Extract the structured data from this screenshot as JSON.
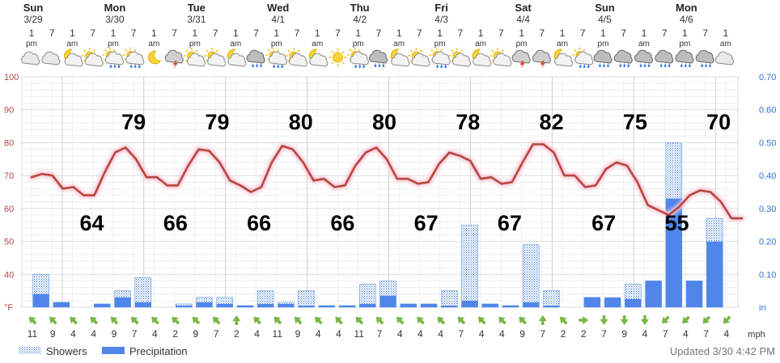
{
  "chart_data": {
    "type": "line",
    "days": [
      {
        "name": "Sun",
        "date": "3/29"
      },
      {
        "name": "Mon",
        "date": "3/30"
      },
      {
        "name": "Tue",
        "date": "3/31"
      },
      {
        "name": "Wed",
        "date": "4/1"
      },
      {
        "name": "Thu",
        "date": "4/2"
      },
      {
        "name": "Fri",
        "date": "4/3"
      },
      {
        "name": "Sat",
        "date": "4/4"
      },
      {
        "name": "Sun",
        "date": "4/5"
      },
      {
        "name": "Mon",
        "date": "4/6"
      }
    ],
    "hours": [
      {
        "h": "1",
        "p": "pm"
      },
      {
        "h": "7",
        "p": ""
      },
      {
        "h": "1",
        "p": "am"
      },
      {
        "h": "7",
        "p": ""
      },
      {
        "h": "1",
        "p": "pm"
      },
      {
        "h": "7",
        "p": ""
      },
      {
        "h": "1",
        "p": "am"
      },
      {
        "h": "7",
        "p": ""
      },
      {
        "h": "1",
        "p": "pm"
      },
      {
        "h": "7",
        "p": ""
      },
      {
        "h": "1",
        "p": "am"
      },
      {
        "h": "7",
        "p": ""
      },
      {
        "h": "1",
        "p": "pm"
      },
      {
        "h": "7",
        "p": ""
      },
      {
        "h": "1",
        "p": "am"
      },
      {
        "h": "7",
        "p": ""
      },
      {
        "h": "1",
        "p": "pm"
      },
      {
        "h": "7",
        "p": ""
      },
      {
        "h": "1",
        "p": "am"
      },
      {
        "h": "7",
        "p": ""
      },
      {
        "h": "1",
        "p": "pm"
      },
      {
        "h": "7",
        "p": ""
      },
      {
        "h": "1",
        "p": "am"
      },
      {
        "h": "7",
        "p": ""
      },
      {
        "h": "1",
        "p": "pm"
      },
      {
        "h": "7",
        "p": ""
      },
      {
        "h": "1",
        "p": "am"
      },
      {
        "h": "7",
        "p": ""
      },
      {
        "h": "1",
        "p": "pm"
      },
      {
        "h": "7",
        "p": ""
      },
      {
        "h": "1",
        "p": "am"
      },
      {
        "h": "7",
        "p": ""
      },
      {
        "h": "1",
        "p": "pm"
      },
      {
        "h": "7",
        "p": ""
      },
      {
        "h": "1",
        "p": "am"
      }
    ],
    "icons": [
      "cloudy-icon",
      "cloudy-icon",
      "partly-cloudy-night-icon",
      "partly-sunny-icon",
      "sun-rain-icon",
      "sun-rain-icon",
      "moon-icon",
      "thunderstorm-icon",
      "partly-sunny-icon",
      "partly-sunny-icon",
      "partly-cloudy-night-icon",
      "rain-icon",
      "sun-rain-icon",
      "partly-sunny-icon",
      "partly-cloudy-night-icon",
      "sunny-icon",
      "sun-rain-icon",
      "rain-icon",
      "partly-cloudy-night-icon",
      "partly-sunny-icon",
      "sun-rain-icon",
      "partly-sunny-icon",
      "partly-cloudy-night-icon",
      "partly-sunny-icon",
      "thunderstorm-icon",
      "thunderstorm-icon",
      "partly-cloudy-night-icon",
      "sun-rain-icon",
      "rain-icon",
      "rain-icon",
      "rain-icon",
      "rain-icon",
      "rain-icon",
      "rain-icon",
      "cloudy-icon"
    ],
    "temperature_f": [
      69.5,
      70.5,
      70,
      66,
      66.5,
      64,
      64,
      71,
      77,
      78.5,
      75,
      69.5,
      69.5,
      67,
      67,
      73,
      78,
      77.5,
      74,
      68.5,
      67,
      65,
      66.5,
      74,
      79,
      78,
      74,
      68.5,
      69,
      66.5,
      67,
      73,
      77,
      78.5,
      75,
      69,
      69,
      67.5,
      68,
      73.5,
      77,
      76,
      74.5,
      69,
      69.5,
      67.5,
      68,
      74,
      79.5,
      79.5,
      77,
      70,
      70,
      66.5,
      67,
      72,
      74,
      73,
      68,
      61,
      59.5,
      58,
      60.5,
      64,
      65.5,
      65,
      62,
      57,
      57
    ],
    "highs": [
      {
        "value": 79,
        "hour_index": 9
      },
      {
        "value": 79,
        "hour_index": 17
      },
      {
        "value": 80,
        "hour_index": 25
      },
      {
        "value": 80,
        "hour_index": 33
      },
      {
        "value": 78,
        "hour_index": 41
      },
      {
        "value": 82,
        "hour_index": 49
      },
      {
        "value": 75,
        "hour_index": 57
      },
      {
        "value": 70,
        "hour_index": 65
      }
    ],
    "lows": [
      {
        "value": 64,
        "hour_index": 5
      },
      {
        "value": 66,
        "hour_index": 13
      },
      {
        "value": 66,
        "hour_index": 21
      },
      {
        "value": 66,
        "hour_index": 29
      },
      {
        "value": 67,
        "hour_index": 37
      },
      {
        "value": 67,
        "hour_index": 45
      },
      {
        "value": 67,
        "hour_index": 54
      },
      {
        "value": 55,
        "hour_index": 61
      }
    ],
    "showers_in": [
      0.1,
      0.015,
      0,
      0.01,
      0.05,
      0.09,
      0,
      0.01,
      0.03,
      0.03,
      0.005,
      0.05,
      0.015,
      0.05,
      0.005,
      0.005,
      0.07,
      0.08,
      0.01,
      0.01,
      0.05,
      0.25,
      0.01,
      0.005,
      0.19,
      0.05,
      0,
      0.03,
      0.02,
      0.07,
      0.08,
      0.5,
      0.08,
      0.27
    ],
    "precipitation_in": [
      0.04,
      0.015,
      0,
      0.01,
      0.03,
      0.015,
      0,
      0.005,
      0.015,
      0.01,
      0.005,
      0.01,
      0.01,
      0.005,
      0.005,
      0.005,
      0.01,
      0.035,
      0.01,
      0.01,
      0.005,
      0.02,
      0.01,
      0.005,
      0.015,
      0.005,
      0,
      0.03,
      0.03,
      0.025,
      0.08,
      0.33,
      0.08,
      0.2
    ],
    "wind": [
      {
        "speed": "11",
        "dir": "nw"
      },
      {
        "speed": "9",
        "dir": "nw"
      },
      {
        "speed": "4",
        "dir": "nw"
      },
      {
        "speed": "4",
        "dir": "nw"
      },
      {
        "speed": "9",
        "dir": "nw"
      },
      {
        "speed": "7",
        "dir": "nw"
      },
      {
        "speed": "4",
        "dir": "nw"
      },
      {
        "speed": "2",
        "dir": "nw"
      },
      {
        "speed": "9",
        "dir": "nw"
      },
      {
        "speed": "7",
        "dir": "nw"
      },
      {
        "speed": "2",
        "dir": "n"
      },
      {
        "speed": "4",
        "dir": "nw"
      },
      {
        "speed": "11",
        "dir": "nw"
      },
      {
        "speed": "9",
        "dir": "nw"
      },
      {
        "speed": "4",
        "dir": "nw"
      },
      {
        "speed": "4",
        "dir": "nw"
      },
      {
        "speed": "11",
        "dir": "nw"
      },
      {
        "speed": "7",
        "dir": "nw"
      },
      {
        "speed": "4",
        "dir": "nw"
      },
      {
        "speed": "4",
        "dir": "nw"
      },
      {
        "speed": "4",
        "dir": "nw"
      },
      {
        "speed": "7",
        "dir": "nw"
      },
      {
        "speed": "4",
        "dir": "nw"
      },
      {
        "speed": "4",
        "dir": "nw"
      },
      {
        "speed": "9",
        "dir": "nw"
      },
      {
        "speed": "7",
        "dir": "n"
      },
      {
        "speed": "2",
        "dir": "nw"
      },
      {
        "speed": "2",
        "dir": "e"
      },
      {
        "speed": "7",
        "dir": "s"
      },
      {
        "speed": "9",
        "dir": "s"
      },
      {
        "speed": "4",
        "dir": "s"
      },
      {
        "speed": "7",
        "dir": "sw"
      },
      {
        "speed": "4",
        "dir": "sw"
      },
      {
        "speed": "7",
        "dir": "sw"
      },
      {
        "speed": "4",
        "dir": "sw"
      }
    ],
    "wind_unit": "mph",
    "y_left": {
      "ticks": [
        "100",
        "90",
        "80",
        "70",
        "60",
        "50",
        "40",
        "°F"
      ],
      "range": [
        30,
        100
      ]
    },
    "y_right": {
      "ticks": [
        "0.70",
        "0.60",
        "0.50",
        "0.40",
        "0.30",
        "0.20",
        "0.10",
        "in"
      ],
      "range": [
        0,
        0.7
      ]
    },
    "legend": [
      {
        "name": "Showers",
        "style": "dotted",
        "color": "#2e6fd6"
      },
      {
        "name": "Precipitation",
        "style": "solid",
        "color": "#4f86e8"
      }
    ],
    "updated": "Updated 3/30 4:42 PM",
    "colors": {
      "temperature_line": "#b9473f",
      "temperature_glow": "#f7c6d6",
      "precip": "#4f86e8",
      "showers": "#2e6fd6",
      "wind_arrow": "#74b944",
      "axis_right": "#2e6fd6",
      "axis_left": "#b04848"
    },
    "grid": true
  }
}
